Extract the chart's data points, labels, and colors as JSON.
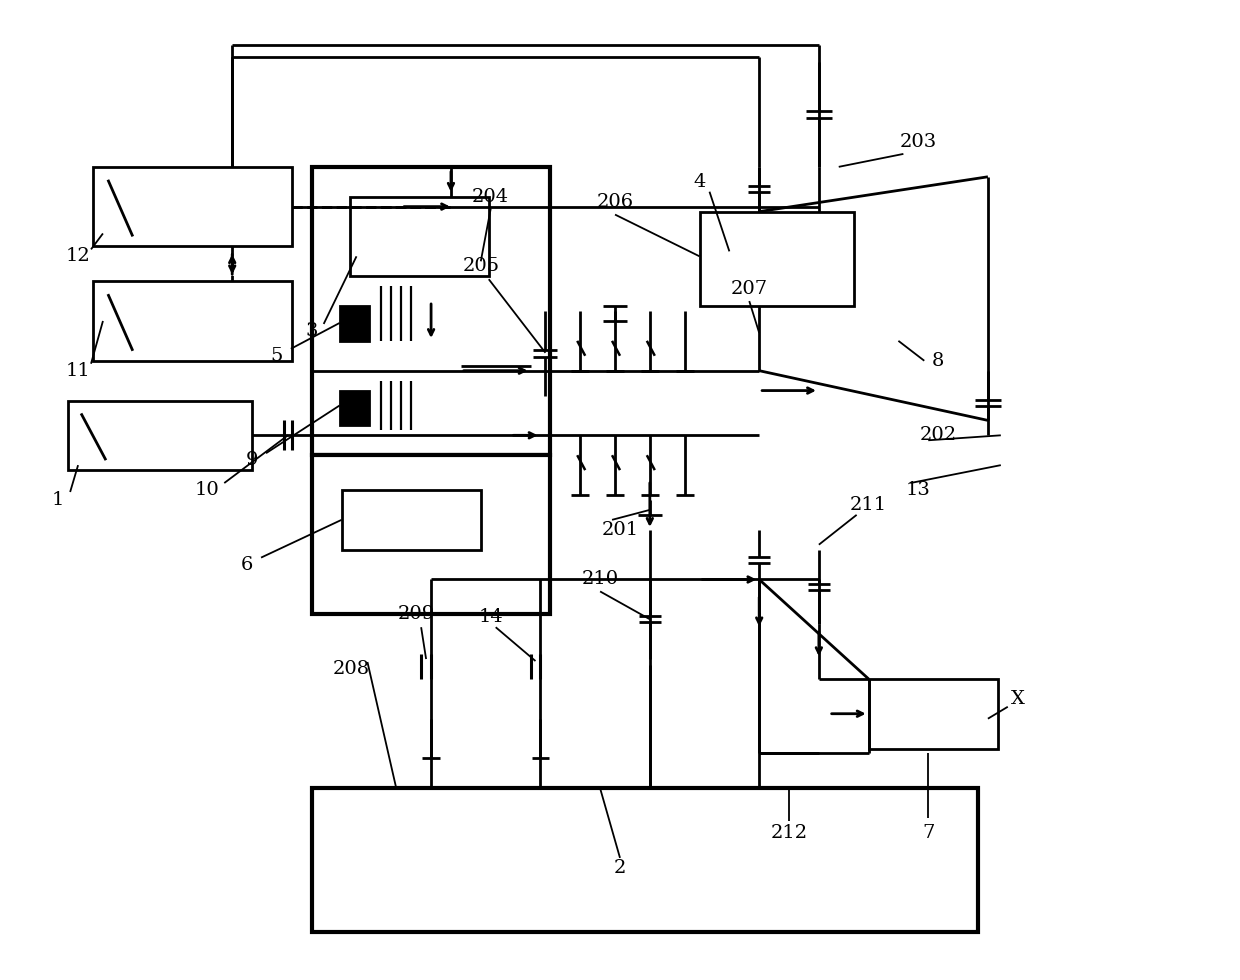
{
  "bg": "#ffffff",
  "lc": "#000000",
  "lw": 2.0,
  "fw": 12.4,
  "fh": 9.8,
  "dpi": 100
}
